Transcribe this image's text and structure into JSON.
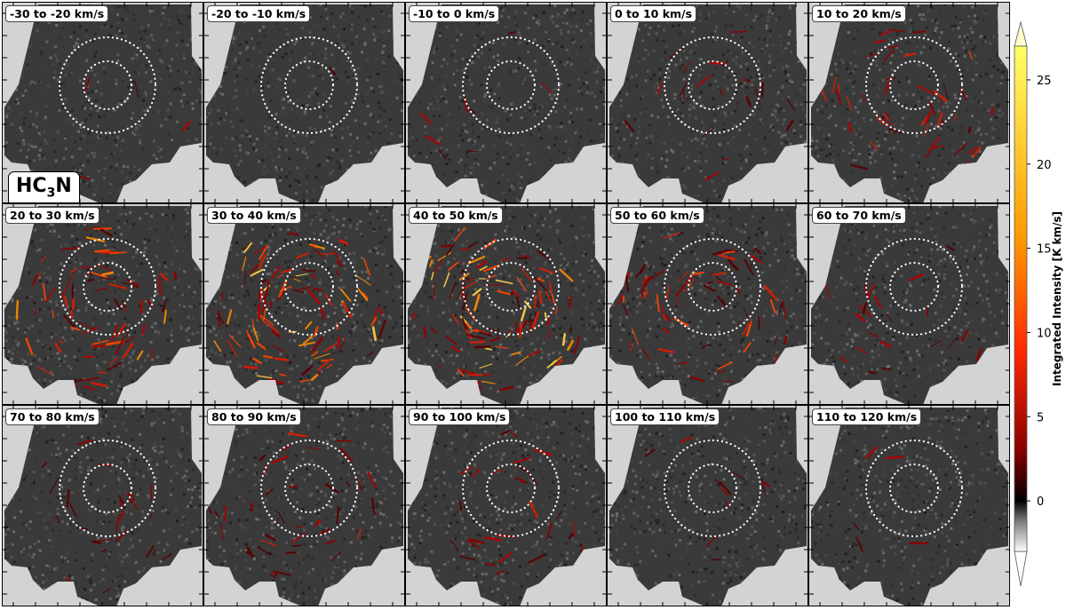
{
  "chart_data": {
    "type": "heatmap",
    "title": "",
    "molecule_label": {
      "prefix": "HC",
      "subscript": "3",
      "suffix": "N"
    },
    "panels": [
      {
        "label": "-30 to -20 km/s",
        "vmin": -30,
        "vmax": -20,
        "emission": 0.03,
        "hotspots": []
      },
      {
        "label": "-20 to -10 km/s",
        "vmin": -20,
        "vmax": -10,
        "emission": 0.01,
        "hotspots": []
      },
      {
        "label": "-10 to 0 km/s",
        "vmin": -10,
        "vmax": 0,
        "emission": 0.06,
        "hotspots": []
      },
      {
        "label": "0 to 10 km/s",
        "vmin": 0,
        "vmax": 10,
        "emission": 0.14,
        "hotspots": []
      },
      {
        "label": "10 to 20 km/s",
        "vmin": 10,
        "vmax": 20,
        "emission": 0.34,
        "hotspots": []
      },
      {
        "label": "20 to 30 km/s",
        "vmin": 20,
        "vmax": 30,
        "emission": 0.55,
        "hotspots": []
      },
      {
        "label": "30 to 40 km/s",
        "vmin": 30,
        "vmax": 40,
        "emission": 0.75,
        "hotspots": []
      },
      {
        "label": "40 to 50 km/s",
        "vmin": 40,
        "vmax": 50,
        "emission": 0.8,
        "hotspots": []
      },
      {
        "label": "50 to 60 km/s",
        "vmin": 50,
        "vmax": 60,
        "emission": 0.45,
        "hotspots": []
      },
      {
        "label": "60 to 70 km/s",
        "vmin": 60,
        "vmax": 70,
        "emission": 0.15,
        "hotspots": []
      },
      {
        "label": "70 to 80 km/s",
        "vmin": 70,
        "vmax": 80,
        "emission": 0.18,
        "hotspots": []
      },
      {
        "label": "80 to 90 km/s",
        "vmin": 80,
        "vmax": 90,
        "emission": 0.28,
        "hotspots": []
      },
      {
        "label": "90 to 100 km/s",
        "vmin": 90,
        "vmax": 100,
        "emission": 0.2,
        "hotspots": []
      },
      {
        "label": "100 to 110 km/s",
        "vmin": 100,
        "vmax": 110,
        "emission": 0.08,
        "hotspots": []
      },
      {
        "label": "110 to 120 km/s",
        "vmin": 110,
        "vmax": 120,
        "emission": 0.04,
        "hotspots": []
      }
    ],
    "colorbar": {
      "label": "Integrated Intensity [K km/s]",
      "range": [
        -3,
        27
      ],
      "ticks": [
        0,
        5,
        10,
        15,
        20,
        25
      ],
      "extend": "both",
      "colormap": [
        "#ffffff",
        "#7a7a7a",
        "#000000",
        "#8b0000",
        "#ff2a00",
        "#ff9900",
        "#ffff66"
      ]
    }
  }
}
